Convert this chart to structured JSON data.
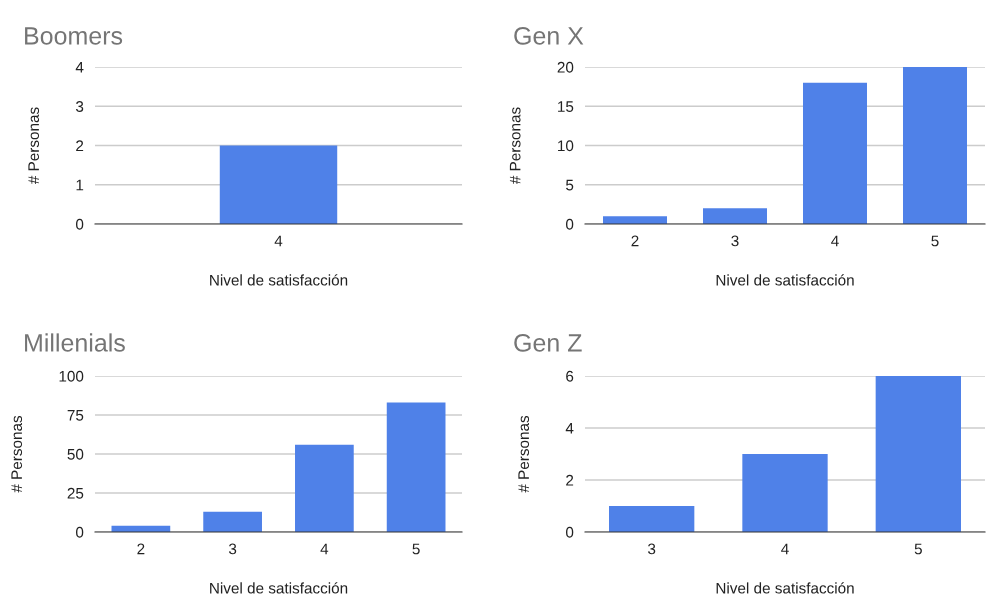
{
  "chart_data": [
    {
      "type": "bar",
      "title": "Boomers",
      "xlabel": "Nivel de satisfacción",
      "ylabel": "# Personas",
      "categories": [
        "4"
      ],
      "values": [
        2
      ],
      "color": "#4f81e8",
      "ylim": [
        0,
        4
      ],
      "yticks": [
        0,
        1,
        2,
        3,
        4
      ],
      "grid": "y"
    },
    {
      "type": "bar",
      "title": "Gen X",
      "xlabel": "Nivel de satisfacción",
      "ylabel": "# Personas",
      "categories": [
        "2",
        "3",
        "4",
        "5"
      ],
      "values": [
        1,
        2,
        18,
        20
      ],
      "color": "#4f81e8",
      "ylim": [
        0,
        20
      ],
      "yticks": [
        0,
        5,
        10,
        15,
        20
      ],
      "grid": "y"
    },
    {
      "type": "bar",
      "title": "Millenials",
      "xlabel": "Nivel de satisfacción",
      "ylabel": "# Personas",
      "categories": [
        "2",
        "3",
        "4",
        "5"
      ],
      "values": [
        4,
        13,
        56,
        83
      ],
      "color": "#4f81e8",
      "ylim": [
        0,
        100
      ],
      "yticks": [
        0,
        25,
        50,
        75,
        100
      ],
      "grid": "y"
    },
    {
      "type": "bar",
      "title": "Gen Z",
      "xlabel": "Nivel de satisfacción",
      "ylabel": "# Personas",
      "categories": [
        "3",
        "4",
        "5"
      ],
      "values": [
        1,
        3,
        6
      ],
      "color": "#4f81e8",
      "ylim": [
        0,
        6
      ],
      "yticks": [
        0,
        2,
        4,
        6
      ],
      "grid": "y"
    }
  ]
}
